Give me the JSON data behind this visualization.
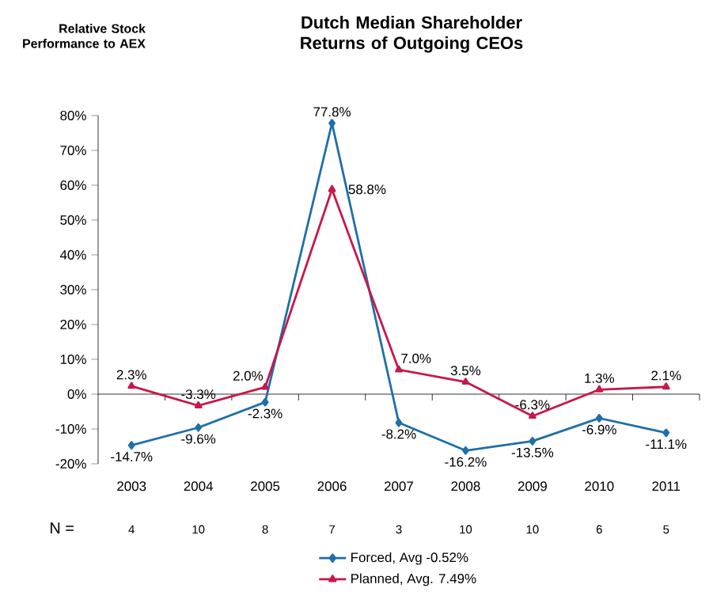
{
  "chart_data": {
    "type": "line",
    "title": "Dutch Median Shareholder Returns of Outgoing CEOs",
    "ylabel": "Relative Stock Performance to AEX",
    "categories": [
      "2003",
      "2004",
      "2005",
      "2006",
      "2007",
      "2008",
      "2009",
      "2010",
      "2011"
    ],
    "series": [
      {
        "name": "Forced, Avg -0.52%",
        "color": "#1f6fa8",
        "marker": "diamond",
        "values": [
          -14.7,
          -9.6,
          -2.3,
          77.8,
          -8.2,
          -16.2,
          -13.5,
          -6.9,
          -11.1
        ],
        "value_labels": [
          "-14.7%",
          "-9.6%",
          "-2.3%",
          "77.8%",
          "-8.2%",
          "-16.2%",
          "-13.5%",
          "-6.9%",
          "-11.1%"
        ]
      },
      {
        "name": "Planned, Avg. 7.49%",
        "color": "#c8174a",
        "marker": "triangle",
        "values": [
          2.3,
          -3.3,
          2.0,
          58.8,
          7.0,
          3.5,
          -6.3,
          1.3,
          2.1
        ],
        "value_labels": [
          "2.3%",
          "-3.3%",
          "2.0%",
          "58.8%",
          "7.0%",
          "3.5%",
          "-6.3%",
          "1.3%",
          "2.1%"
        ]
      }
    ],
    "ylim": [
      -20,
      80
    ],
    "yticks": [
      {
        "value": -20,
        "label": "-20%"
      },
      {
        "value": -10,
        "label": "-10%"
      },
      {
        "value": 0,
        "label": "0%"
      },
      {
        "value": 10,
        "label": "10%"
      },
      {
        "value": 20,
        "label": "20%"
      },
      {
        "value": 30,
        "label": "30%"
      },
      {
        "value": 40,
        "label": "40%"
      },
      {
        "value": 50,
        "label": "50%"
      },
      {
        "value": 60,
        "label": "60%"
      },
      {
        "value": 70,
        "label": "70%"
      },
      {
        "value": 80,
        "label": "80%"
      }
    ],
    "legend": "bottom",
    "annotations": [
      "N =",
      "4",
      "10",
      "8",
      "7",
      "3",
      "10",
      "10",
      "6",
      "5"
    ]
  }
}
